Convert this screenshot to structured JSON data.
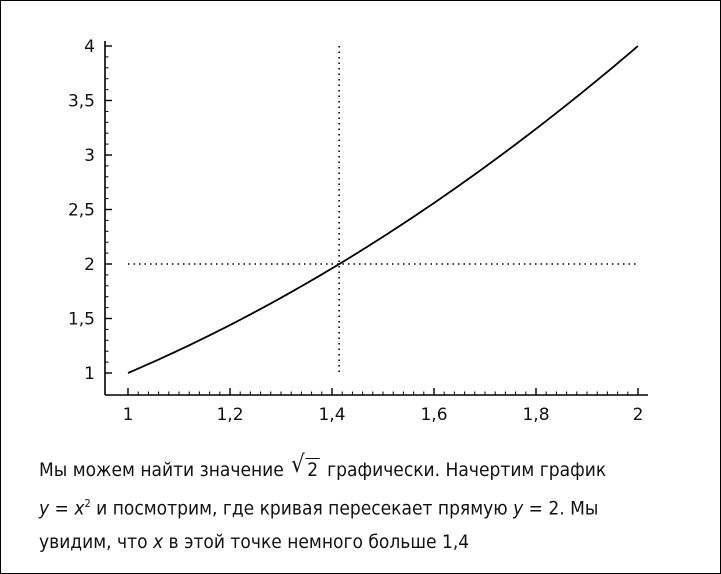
{
  "chart_data": {
    "type": "line",
    "title": "",
    "xlabel": "",
    "ylabel": "",
    "xlim": [
      1,
      2
    ],
    "ylim": [
      1,
      4
    ],
    "x_ticks": [
      "1",
      "1,2",
      "1,4",
      "1,6",
      "1,8",
      "2"
    ],
    "x_tick_values": [
      1,
      1.2,
      1.4,
      1.6,
      1.8,
      2
    ],
    "y_ticks": [
      "1",
      "1,5",
      "2",
      "2,5",
      "3",
      "3,5",
      "4"
    ],
    "y_tick_values": [
      1,
      1.5,
      2,
      2.5,
      3,
      3.5,
      4
    ],
    "series": [
      {
        "function": "y = x^2",
        "x": [
          1.0,
          1.1,
          1.2,
          1.3,
          1.4,
          1.5,
          1.6,
          1.7,
          1.8,
          1.9,
          2.0
        ],
        "y": [
          1.0,
          1.21,
          1.44,
          1.69,
          1.96,
          2.25,
          2.56,
          2.89,
          3.24,
          3.61,
          4.0
        ]
      }
    ],
    "reference_lines": [
      {
        "orientation": "horizontal",
        "value": 2,
        "style": "dotted"
      },
      {
        "orientation": "vertical",
        "value": 1.414,
        "style": "dotted"
      }
    ],
    "grid": false,
    "minor_ticks": true
  },
  "caption": {
    "line1_before": "Мы можем найти значение ",
    "sqrt_radicand": "2",
    "line1_after": " графически. Начертим график",
    "line2_y": "y",
    "line2_eq": " = ",
    "line2_x": "x",
    "line2_exp": "2",
    "line2_mid": " и посмотрим, где кривая пересекает прямую ",
    "line2_y2": "y",
    "line2_end": " = 2. Мы",
    "line3_before": "увидим, что ",
    "line3_x": "x",
    "line3_after": " в этой точке немного больше 1,4"
  },
  "colors": {
    "line": "#000000",
    "axis": "#000000",
    "text": "#111111"
  }
}
